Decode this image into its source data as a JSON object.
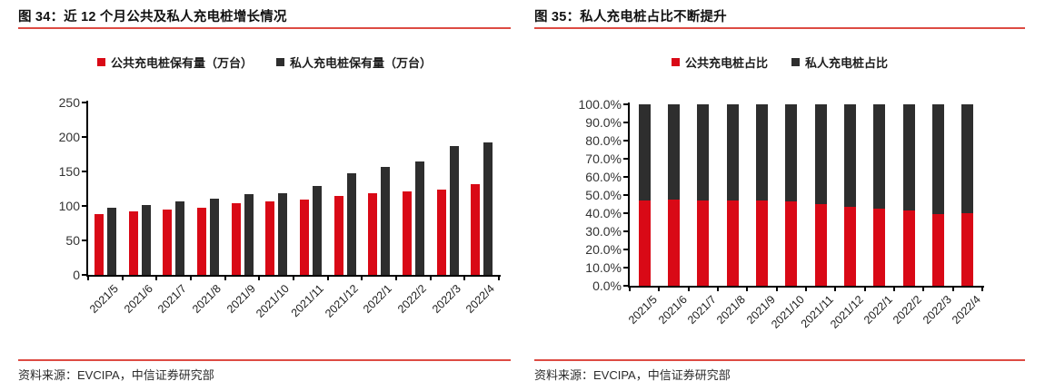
{
  "panels": [
    {
      "title": "图 34：近 12 个月公共及私人充电桩增长情况",
      "source": "资料来源：EVCIPA，中信证券研究部"
    },
    {
      "title": "图 35：私人充电桩占比不断提升",
      "source": "资料来源：EVCIPA，中信证券研究部"
    }
  ],
  "colors": {
    "bar_red": "#d90916",
    "bar_dark": "#2e2e2e",
    "rule_red": "#dd4b43",
    "axis_black": "#000000",
    "tick_label_gray": "#333333"
  },
  "chart_data": [
    {
      "type": "bar",
      "stacked": false,
      "title": "图 34：近 12 个月公共及私人充电桩增长情况",
      "xlabel": "",
      "ylabel": "",
      "categories": [
        "2021/5",
        "2021/6",
        "2021/7",
        "2021/8",
        "2021/9",
        "2021/10",
        "2021/11",
        "2021/12",
        "2022/1",
        "2022/2",
        "2022/3",
        "2022/4"
      ],
      "series": [
        {
          "key": "public",
          "name": "公共充电桩保有量（万台）",
          "color": "#d90916",
          "values": [
            88,
            92,
            95,
            98,
            104,
            106,
            109,
            115,
            118,
            121,
            124,
            132
          ]
        },
        {
          "key": "private",
          "name": "私人充电桩保有量（万台）",
          "color": "#2e2e2e",
          "values": [
            98,
            101,
            106,
            111,
            117,
            119,
            129,
            147,
            156,
            165,
            187,
            192
          ]
        }
      ],
      "ylim": [
        0,
        250
      ],
      "ytick_labels": [
        "0",
        "50",
        "100",
        "150",
        "200",
        "250"
      ],
      "grid": false,
      "legend_position": "top"
    },
    {
      "type": "bar",
      "stacked": true,
      "title": "图 35：私人充电桩占比不断提升",
      "xlabel": "",
      "ylabel": "",
      "categories": [
        "2021/5",
        "2021/6",
        "2021/7",
        "2021/8",
        "2021/9",
        "2021/10",
        "2021/11",
        "2021/12",
        "2022/1",
        "2022/2",
        "2022/3",
        "2022/4"
      ],
      "series": [
        {
          "key": "public",
          "name": "公共充电桩占比",
          "color": "#d90916",
          "values": [
            47.2,
            47.5,
            47.2,
            46.8,
            47.0,
            46.5,
            45.0,
            43.5,
            42.5,
            41.5,
            39.5,
            40.2
          ]
        },
        {
          "key": "private",
          "name": "私人充电桩占比",
          "color": "#2e2e2e",
          "values": [
            52.8,
            52.5,
            52.8,
            53.2,
            53.0,
            53.5,
            55.0,
            56.5,
            57.5,
            58.5,
            60.5,
            59.8
          ]
        }
      ],
      "ylim": [
        0,
        100
      ],
      "ytick_labels": [
        "0.0%",
        "10.0%",
        "20.0%",
        "30.0%",
        "40.0%",
        "50.0%",
        "60.0%",
        "70.0%",
        "80.0%",
        "90.0%",
        "100.0%"
      ],
      "grid": false,
      "legend_position": "top"
    }
  ]
}
